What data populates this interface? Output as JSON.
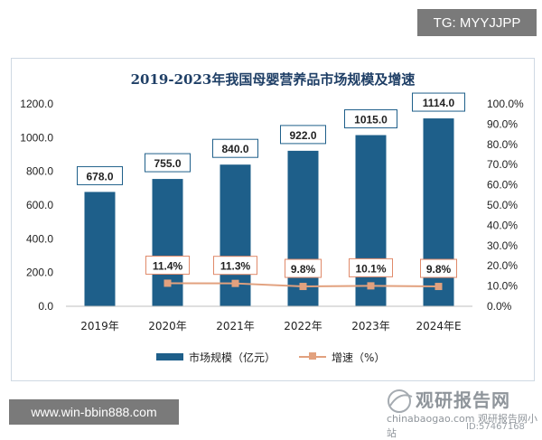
{
  "badges": {
    "tg": "TG: MYYJJPP",
    "url": "www.win-bbin888.com"
  },
  "colors": {
    "bar": "#1e5f8a",
    "line": "#e2a17e",
    "label_border_bar": "#1e5f8a",
    "label_border_line": "#e08a6a"
  },
  "chart_data": {
    "type": "bar",
    "title": "2019-2023年我国母婴营养品市场规模及增速",
    "categories": [
      "2019年",
      "2020年",
      "2021年",
      "2022年",
      "2023年",
      "2024年E"
    ],
    "series": [
      {
        "name": "市场规模（亿元）",
        "type": "bar",
        "axis": "left",
        "values": [
          678.0,
          755.0,
          840.0,
          922.0,
          1015.0,
          1114.0
        ],
        "labels": [
          "678.0",
          "755.0",
          "840.0",
          "922.0",
          "1015.0",
          "1114.0"
        ]
      },
      {
        "name": "增速（%）",
        "type": "line",
        "axis": "right",
        "values": [
          null,
          11.4,
          11.3,
          9.8,
          10.1,
          9.8
        ],
        "labels": [
          "",
          "11.4%",
          "11.3%",
          "9.8%",
          "10.1%",
          "9.8%"
        ]
      }
    ],
    "y_left": {
      "min": 0,
      "max": 1200,
      "step": 200,
      "ticks": [
        "0.0",
        "200.0",
        "400.0",
        "600.0",
        "800.0",
        "1000.0",
        "1200.0"
      ]
    },
    "y_right": {
      "min": 0,
      "max": 100,
      "step": 10,
      "ticks": [
        "0.0%",
        "10.0%",
        "20.0%",
        "30.0%",
        "40.0%",
        "50.0%",
        "60.0%",
        "70.0%",
        "80.0%",
        "90.0%",
        "100.0%"
      ]
    },
    "grid": false,
    "legend_position": "bottom"
  },
  "watermark": {
    "brand": "观研报告网",
    "sub": "chinabaogao.com 观研报告网小站",
    "id": "ID:57467168"
  }
}
